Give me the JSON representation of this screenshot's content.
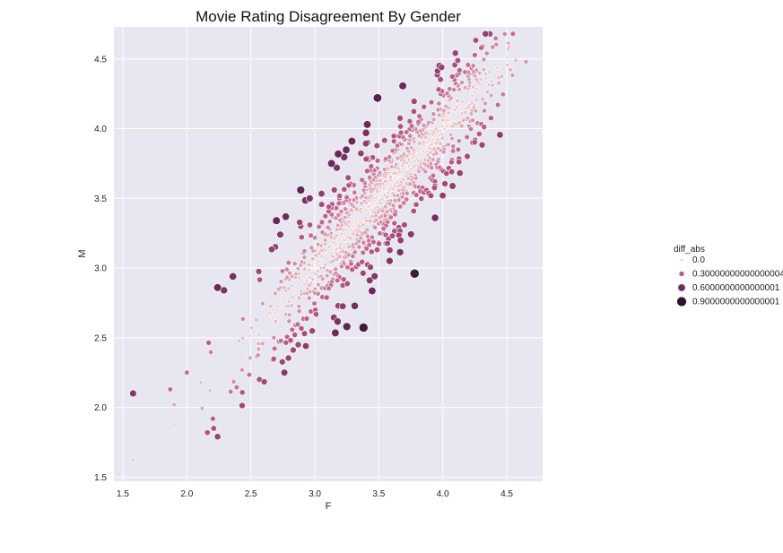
{
  "chart_data": {
    "type": "scatter",
    "title": "Movie Rating Disagreement By Gender",
    "xlabel": "F",
    "ylabel": "M",
    "xlim": [
      1.43,
      4.78
    ],
    "ylim": [
      1.47,
      4.73
    ],
    "x_ticks": [
      "1.5",
      "2.0",
      "2.5",
      "3.0",
      "3.5",
      "4.0",
      "4.5"
    ],
    "y_ticks": [
      "1.5",
      "2.0",
      "2.5",
      "3.0",
      "3.5",
      "4.0",
      "4.5"
    ],
    "grid": true,
    "background_color": "#e8e6f0",
    "hue_variable": "diff_abs",
    "legend_placement": "right",
    "legend": {
      "title": "diff_abs",
      "entries": [
        {
          "label": "0.0",
          "value": 0.0,
          "color": "#f1d8d2"
        },
        {
          "label": "0.30000000000000004",
          "value": 0.3,
          "color": "#bb5b88"
        },
        {
          "label": "0.6000000000000001",
          "value": 0.6,
          "color": "#6e2c5d"
        },
        {
          "label": "0.9000000000000001",
          "value": 0.9,
          "color": "#2a1530"
        }
      ]
    },
    "highlighted_points": [
      {
        "x": 1.58,
        "y": 1.62,
        "diff": 0.04
      },
      {
        "x": 1.58,
        "y": 2.1,
        "diff": 0.52
      },
      {
        "x": 1.87,
        "y": 2.13,
        "diff": 0.26
      },
      {
        "x": 1.9,
        "y": 1.87,
        "diff": 0.03
      },
      {
        "x": 1.9,
        "y": 2.02,
        "diff": 0.12
      },
      {
        "x": 2.0,
        "y": 2.25,
        "diff": 0.25
      },
      {
        "x": 2.16,
        "y": 1.82,
        "diff": 0.34
      },
      {
        "x": 2.21,
        "y": 1.85,
        "diff": 0.36
      },
      {
        "x": 2.24,
        "y": 1.79,
        "diff": 0.45
      },
      {
        "x": 2.24,
        "y": 2.86,
        "diff": 0.62
      },
      {
        "x": 2.29,
        "y": 2.84,
        "diff": 0.55
      },
      {
        "x": 2.36,
        "y": 2.94,
        "diff": 0.58
      },
      {
        "x": 2.7,
        "y": 3.34,
        "diff": 0.64
      },
      {
        "x": 2.73,
        "y": 3.24,
        "diff": 0.51
      },
      {
        "x": 2.89,
        "y": 3.56,
        "diff": 0.67
      },
      {
        "x": 2.87,
        "y": 2.45,
        "diff": 0.42
      },
      {
        "x": 2.93,
        "y": 2.44,
        "diff": 0.49
      },
      {
        "x": 2.96,
        "y": 3.5,
        "diff": 0.54
      },
      {
        "x": 3.13,
        "y": 3.75,
        "diff": 0.62
      },
      {
        "x": 3.25,
        "y": 2.58,
        "diff": 0.67
      },
      {
        "x": 3.29,
        "y": 3.91,
        "diff": 0.62
      },
      {
        "x": 3.4,
        "y": 3.97,
        "diff": 0.57
      },
      {
        "x": 3.41,
        "y": 4.03,
        "diff": 0.62
      },
      {
        "x": 3.49,
        "y": 4.22,
        "diff": 0.73
      },
      {
        "x": 3.78,
        "y": 2.96,
        "diff": 0.82
      },
      {
        "x": 3.7,
        "y": 3.31,
        "diff": 0.39
      },
      {
        "x": 3.94,
        "y": 3.36,
        "diff": 0.58
      },
      {
        "x": 3.99,
        "y": 4.44,
        "diff": 0.45
      },
      {
        "x": 4.3,
        "y": 4.58,
        "diff": 0.28
      },
      {
        "x": 4.43,
        "y": 4.17,
        "diff": 0.26
      },
      {
        "x": 4.51,
        "y": 4.57,
        "diff": 0.06
      },
      {
        "x": 4.57,
        "y": 4.49,
        "diff": 0.08
      },
      {
        "x": 4.65,
        "y": 4.48,
        "diff": 0.17
      }
    ],
    "bulk_cloud": {
      "n": 1100,
      "x_mean": 3.55,
      "x_sd": 0.48,
      "x_range": [
        2.05,
        4.55
      ],
      "slope": 1.0,
      "intercept": 0.0,
      "residual_sd": 0.2
    }
  }
}
